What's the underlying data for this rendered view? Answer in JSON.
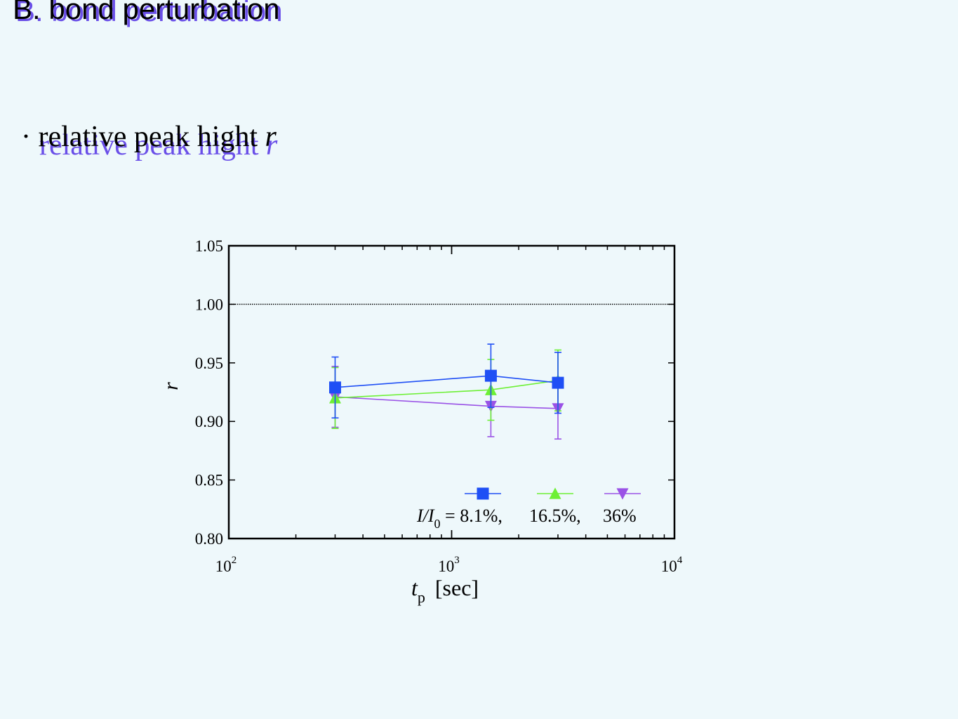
{
  "slide": {
    "title": "B. bond perturbation",
    "bullet_symbol": "·",
    "bullet_text": "relative peak hight ",
    "bullet_var": "r"
  },
  "chart_data": {
    "type": "line",
    "xscale": "log",
    "xlim": [
      100,
      10000
    ],
    "ylim": [
      0.8,
      1.05
    ],
    "xticks": [
      {
        "base": "10",
        "exp": "2"
      },
      {
        "base": "10",
        "exp": "3"
      },
      {
        "base": "10",
        "exp": "4"
      }
    ],
    "yticks": [
      "0.80",
      "0.85",
      "0.90",
      "0.95",
      "1.00",
      "1.05"
    ],
    "ylabel": "r",
    "xlabel_var": "t",
    "xlabel_sub": "p",
    "xlabel_unit": "[sec]",
    "reference_line": 1.0,
    "legend_prefix_var": "I/I",
    "legend_prefix_sub": "0",
    "legend_prefix_eq": " = ",
    "series": [
      {
        "name": "8.1%,",
        "color": "#1f4ff5",
        "marker": "square",
        "x": [
          300,
          1500,
          3000
        ],
        "y": [
          0.929,
          0.939,
          0.933
        ],
        "yerr_low": [
          0.903,
          0.912,
          0.907
        ],
        "yerr_high": [
          0.955,
          0.966,
          0.959
        ]
      },
      {
        "name": "16.5%,",
        "color": "#6df035",
        "marker": "triangle-up",
        "x": [
          300,
          1500,
          3000
        ],
        "y": [
          0.92,
          0.927,
          0.935
        ],
        "yerr_low": [
          0.894,
          0.901,
          0.909
        ],
        "yerr_high": [
          0.946,
          0.953,
          0.961
        ]
      },
      {
        "name": "36%",
        "color": "#9a52e6",
        "marker": "triangle-down",
        "x": [
          300,
          1500,
          3000
        ],
        "y": [
          0.921,
          0.913,
          0.911
        ],
        "yerr_low": [
          0.895,
          0.887,
          0.885
        ],
        "yerr_high": [
          0.947,
          0.939,
          0.937
        ]
      }
    ]
  }
}
